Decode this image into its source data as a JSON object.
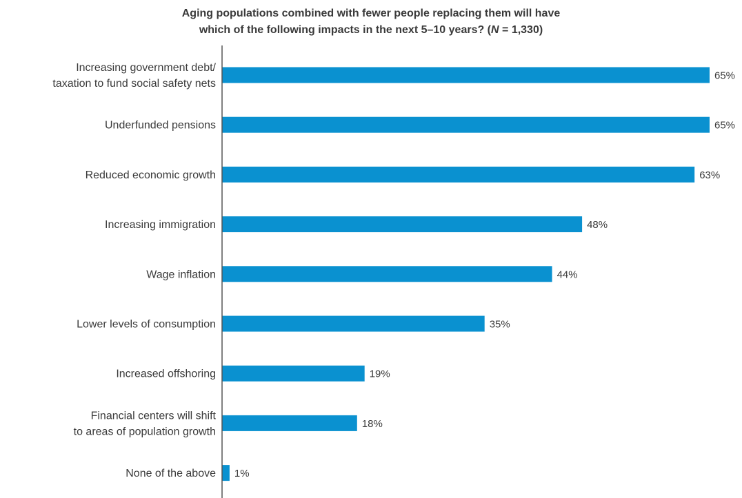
{
  "chart_data": {
    "type": "bar",
    "orientation": "horizontal",
    "title_line1": "Aging populations combined with fewer people replacing them will have",
    "title_line2_prefix": "which of the following impacts in the next 5–10 years? (",
    "title_n_symbol": "N",
    "title_n_value": " = 1,330)",
    "categories": [
      [
        "Increasing government debt/",
        "taxation to fund social safety nets"
      ],
      [
        "Underfunded pensions"
      ],
      [
        "Reduced economic growth"
      ],
      [
        "Increasing immigration"
      ],
      [
        "Wage inflation"
      ],
      [
        "Lower levels of consumption"
      ],
      [
        "Increased offshoring"
      ],
      [
        "Financial centers will shift",
        "to areas of population growth"
      ],
      [
        "None of the above"
      ]
    ],
    "values": [
      65,
      65,
      63,
      48,
      44,
      35,
      19,
      18,
      1
    ],
    "value_labels": [
      "65%",
      "65%",
      "63%",
      "48%",
      "44%",
      "35%",
      "19%",
      "18%",
      "1%"
    ],
    "xlim": [
      0,
      65
    ],
    "unit": "%",
    "bar_color": "#0a91d0",
    "axis_color": "#555555",
    "text_color": "#3a3a3a",
    "grid": false,
    "legend": "none"
  }
}
